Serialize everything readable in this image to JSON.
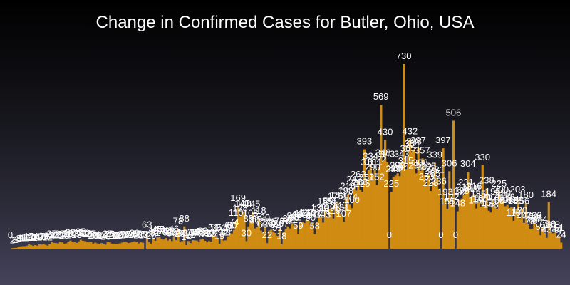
{
  "chart_data": {
    "type": "bar",
    "title": "Change in Confirmed Cases for Butler, Ohio, USA",
    "bar_color": "#d08c12",
    "text_color": "#ffffff",
    "background_colors": [
      "#000000",
      "#45435a"
    ],
    "values": [
      0,
      2,
      3,
      3,
      8,
      9,
      10,
      10,
      12,
      17,
      14,
      11,
      14,
      12,
      17,
      16,
      19,
      15,
      12,
      18,
      27,
      23,
      22,
      21,
      27,
      25,
      20,
      21,
      28,
      32,
      27,
      25,
      23,
      29,
      35,
      31,
      30,
      28,
      25,
      27,
      20,
      24,
      21,
      19,
      22,
      18,
      16,
      27,
      25,
      20,
      20,
      18,
      20,
      21,
      24,
      26,
      25,
      22,
      24,
      26,
      29,
      27,
      21,
      25,
      23,
      0,
      63,
      25,
      20,
      40,
      31,
      45,
      45,
      37,
      36,
      42,
      32,
      38,
      30,
      46,
      34,
      78,
      28,
      30,
      88,
      14,
      30,
      22,
      34,
      33,
      32,
      25,
      36,
      38,
      31,
      25,
      30,
      28,
      51,
      52,
      43,
      19,
      51,
      32,
      33,
      49,
      60,
      60,
      74,
      110,
      169,
      128,
      147,
      144,
      30,
      88,
      108,
      145,
      80,
      85,
      118,
      72,
      63,
      90,
      22,
      72,
      75,
      68,
      62,
      51,
      78,
      18,
      67,
      76,
      88,
      80,
      98,
      90,
      92,
      59,
      104,
      107,
      101,
      112,
      110,
      90,
      103,
      58,
      104,
      130,
      125,
      103,
      155,
      129,
      156,
      160,
      119,
      176,
      180,
      140,
      131,
      107,
      198,
      216,
      174,
      160,
      242,
      230,
      262,
      233,
      225,
      393,
      251,
      310,
      334,
      290,
      311,
      252,
      322,
      569,
      348,
      430,
      343,
      0,
      225,
      283,
      289,
      298,
      287,
      343,
      730,
      315,
      365,
      432,
      384,
      393,
      298,
      397,
      308,
      357,
      292,
      253,
      295,
      228,
      265,
      339,
      281,
      236,
      0,
      397,
      193,
      155,
      306,
      172,
      506,
      0,
      148,
      192,
      198,
      213,
      231,
      304,
      203,
      210,
      216,
      159,
      185,
      166,
      330,
      170,
      238,
      150,
      143,
      195,
      170,
      158,
      225,
      200,
      190,
      168,
      173,
      161,
      164,
      110,
      158,
      203,
      120,
      156,
      102,
      180,
      96,
      78,
      79,
      100,
      87,
      91,
      53,
      84,
      62,
      43,
      184,
      66,
      61,
      63,
      44,
      51,
      24
    ]
  }
}
